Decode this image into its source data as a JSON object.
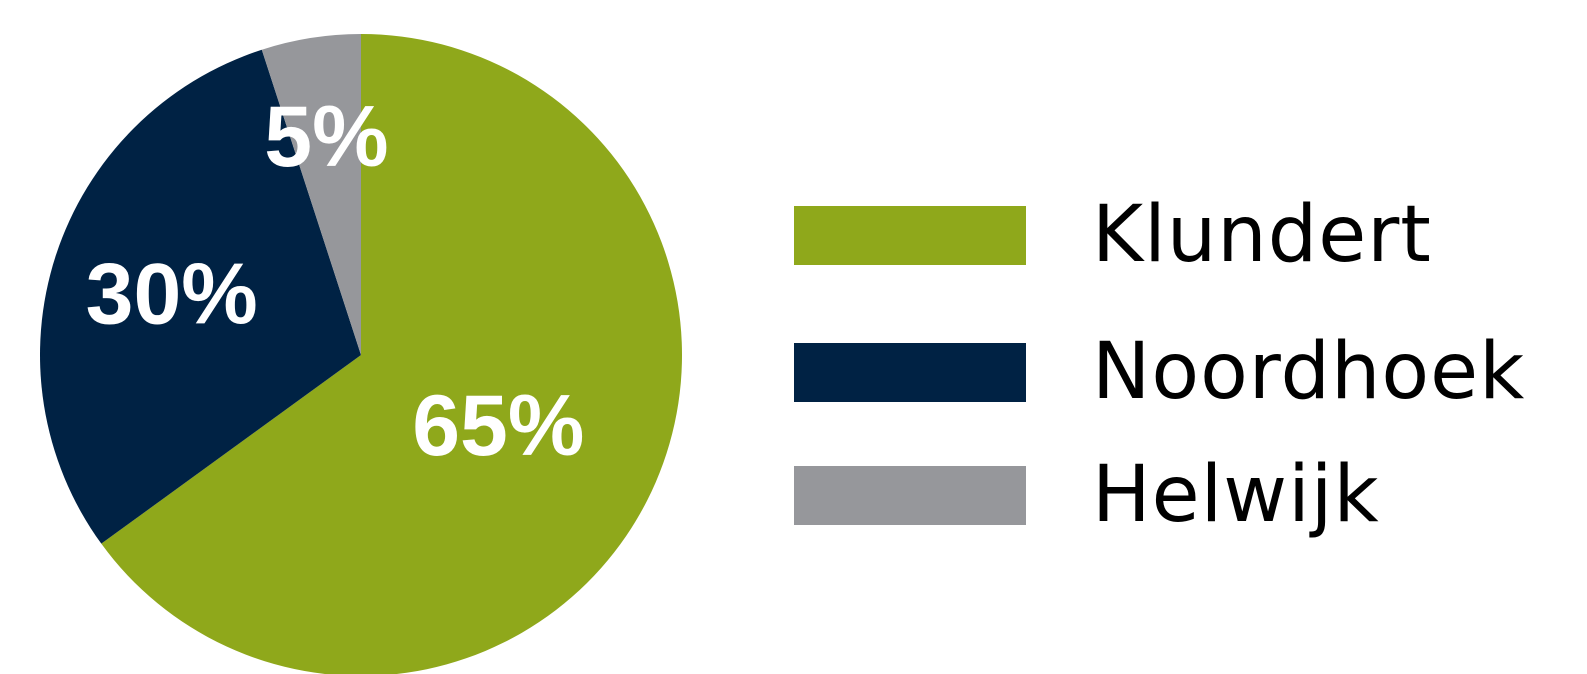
{
  "chart_data": {
    "type": "pie",
    "start_angle": "12 o'clock",
    "direction": "clockwise",
    "slices": [
      {
        "name": "Klundert",
        "value": 65,
        "label": "65%",
        "color": "#8FA81B"
      },
      {
        "name": "Noordhoek",
        "value": 30,
        "label": "30%",
        "color": "#002244"
      },
      {
        "name": "Helwijk",
        "value": 5,
        "label": "5%",
        "color": "#96979B"
      }
    ],
    "legend": {
      "position": "right",
      "entries": [
        "Klundert",
        "Noordhoek",
        "Helwijk"
      ]
    }
  }
}
